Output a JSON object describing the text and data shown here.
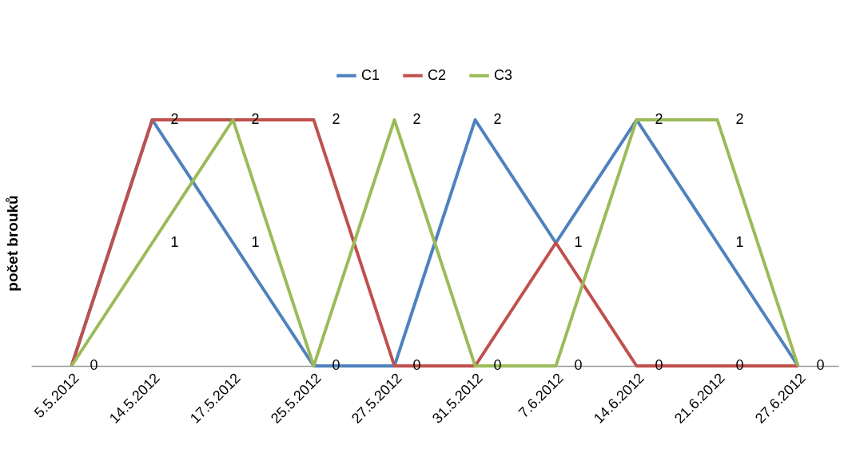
{
  "chart_data": {
    "type": "line",
    "ylabel": "počet brouků",
    "categories": [
      "5.5.2012",
      "14.5.2012",
      "17.5.2012",
      "25.5.2012",
      "27.5.2012",
      "31.5.2012",
      "7.6.2012",
      "14.6.2012",
      "21.6.2012",
      "27.6.2012"
    ],
    "series": [
      {
        "name": "C1",
        "color": "#4f81bd",
        "values": [
          0,
          2,
          1,
          0,
          0,
          2,
          1,
          2,
          1,
          0
        ],
        "value_labels": [
          null,
          null,
          "1",
          null,
          null,
          "2",
          null,
          null,
          "1",
          null
        ]
      },
      {
        "name": "C2",
        "color": "#c0504d",
        "values": [
          0,
          2,
          2,
          2,
          0,
          0,
          1,
          0,
          0,
          0
        ],
        "value_labels": [
          null,
          "2",
          null,
          "2",
          "0",
          null,
          "1",
          "0",
          "0",
          null
        ]
      },
      {
        "name": "C3",
        "color": "#9bbb59",
        "values": [
          0,
          1,
          2,
          0,
          2,
          0,
          0,
          2,
          2,
          0
        ],
        "value_labels": [
          "0",
          "1",
          "2",
          "0",
          "2",
          "0",
          "0",
          "2",
          "2",
          "0"
        ]
      }
    ],
    "tick_labels": "x",
    "grid": false,
    "legend": "top",
    "marker": "none",
    "line_style": "solid"
  }
}
